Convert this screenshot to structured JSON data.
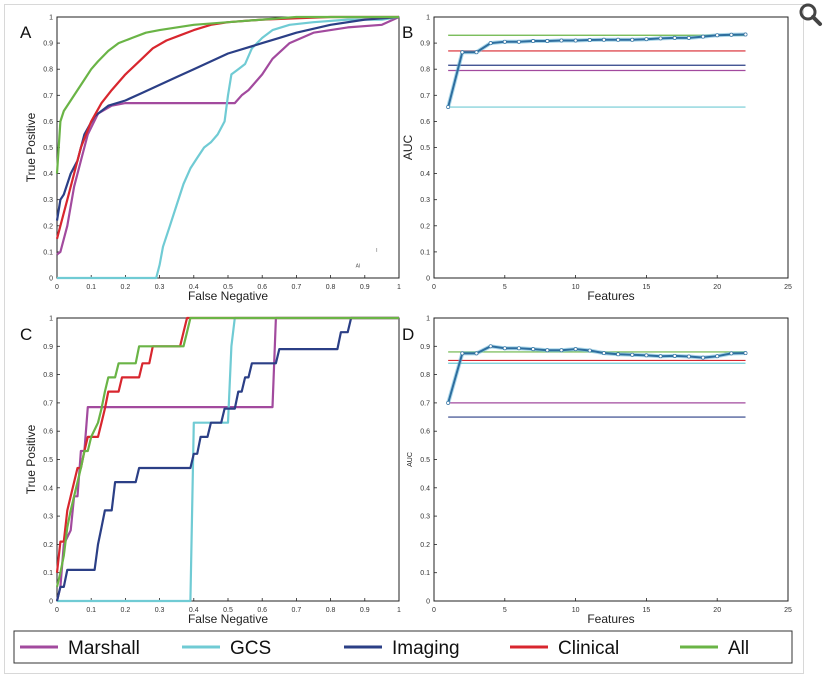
{
  "zoom_icon": "magnifier-zoom-icon",
  "colors": {
    "Marshall": "#a24a9e",
    "GCS": "#70cbd4",
    "Imaging": "#2b3f86",
    "Clinical": "#d8262e",
    "All": "#6ab446"
  },
  "legend": [
    "Marshall",
    "GCS",
    "Imaging",
    "Clinical",
    "All"
  ],
  "chart_data": [
    {
      "panel": "A",
      "type": "line",
      "xlabel": "False Negative",
      "ylabel": "True Positive",
      "xlim": [
        0,
        1
      ],
      "ylim": [
        0,
        1
      ],
      "xticks": [
        "0",
        "0.1",
        "0.2",
        "0.3",
        "0.4",
        "0.5",
        "0.6",
        "0.7",
        "0.8",
        "0.9",
        "1"
      ],
      "yticks": [
        "0",
        "0.1",
        "0.2",
        "0.3",
        "0.4",
        "0.5",
        "0.6",
        "0.7",
        "0.8",
        "0.9",
        "1"
      ],
      "annotations": [
        "AI"
      ],
      "series": [
        {
          "name": "Marshall",
          "x": [
            0,
            0.01,
            0.03,
            0.05,
            0.07,
            0.09,
            0.12,
            0.16,
            0.2,
            0.25,
            0.35,
            0.45,
            0.52,
            0.54,
            0.56,
            0.6,
            0.63,
            0.68,
            0.75,
            0.85,
            0.95,
            1
          ],
          "y": [
            0.09,
            0.1,
            0.2,
            0.35,
            0.45,
            0.55,
            0.63,
            0.66,
            0.67,
            0.67,
            0.67,
            0.67,
            0.67,
            0.7,
            0.72,
            0.78,
            0.84,
            0.9,
            0.94,
            0.96,
            0.97,
            1
          ]
        },
        {
          "name": "GCS",
          "x": [
            0,
            0.29,
            0.3,
            0.31,
            0.33,
            0.35,
            0.37,
            0.39,
            0.41,
            0.43,
            0.45,
            0.47,
            0.49,
            0.5,
            0.51,
            0.53,
            0.55,
            0.57,
            0.6,
            0.63,
            0.68,
            0.75,
            0.85,
            0.95,
            1
          ],
          "y": [
            0,
            0,
            0.05,
            0.12,
            0.2,
            0.28,
            0.36,
            0.42,
            0.46,
            0.5,
            0.52,
            0.55,
            0.6,
            0.7,
            0.78,
            0.8,
            0.82,
            0.88,
            0.92,
            0.95,
            0.97,
            0.98,
            0.99,
            0.99,
            1
          ]
        },
        {
          "name": "Imaging",
          "x": [
            0,
            0.01,
            0.02,
            0.04,
            0.06,
            0.08,
            0.11,
            0.15,
            0.2,
            0.25,
            0.3,
            0.35,
            0.4,
            0.45,
            0.5,
            0.55,
            0.6,
            0.65,
            0.7,
            0.8,
            0.9,
            1
          ],
          "y": [
            0.22,
            0.3,
            0.32,
            0.4,
            0.45,
            0.55,
            0.62,
            0.66,
            0.68,
            0.71,
            0.74,
            0.77,
            0.8,
            0.83,
            0.86,
            0.88,
            0.9,
            0.92,
            0.94,
            0.97,
            0.99,
            1
          ]
        },
        {
          "name": "Clinical",
          "x": [
            0,
            0.01,
            0.03,
            0.05,
            0.07,
            0.1,
            0.13,
            0.16,
            0.2,
            0.24,
            0.28,
            0.32,
            0.36,
            0.4,
            0.45,
            0.5,
            0.6,
            0.7,
            0.8,
            0.9,
            1
          ],
          "y": [
            0.15,
            0.2,
            0.3,
            0.4,
            0.5,
            0.6,
            0.67,
            0.72,
            0.78,
            0.83,
            0.88,
            0.91,
            0.93,
            0.95,
            0.97,
            0.98,
            0.99,
            0.995,
            1,
            1,
            1
          ]
        },
        {
          "name": "All",
          "x": [
            0,
            0.005,
            0.01,
            0.02,
            0.04,
            0.06,
            0.08,
            0.1,
            0.12,
            0.15,
            0.18,
            0.22,
            0.26,
            0.3,
            0.35,
            0.4,
            0.5,
            0.6,
            0.7,
            0.8,
            1
          ],
          "y": [
            0.4,
            0.5,
            0.6,
            0.64,
            0.68,
            0.72,
            0.76,
            0.8,
            0.83,
            0.87,
            0.9,
            0.92,
            0.94,
            0.95,
            0.96,
            0.97,
            0.98,
            0.99,
            1,
            1,
            1
          ]
        }
      ]
    },
    {
      "panel": "B",
      "type": "line",
      "xlabel": "Features",
      "ylabel": "AUC",
      "xlim": [
        0,
        25
      ],
      "ylim": [
        0,
        1
      ],
      "xticks": [
        "0",
        "5",
        "10",
        "15",
        "20",
        "25"
      ],
      "yticks": [
        "0",
        "0.1",
        "0.2",
        "0.3",
        "0.4",
        "0.5",
        "0.6",
        "0.7",
        "0.8",
        "0.9",
        "1"
      ],
      "reference_lines": [
        {
          "name": "All",
          "y": 0.93
        },
        {
          "name": "Clinical",
          "y": 0.87
        },
        {
          "name": "Imaging",
          "y": 0.815
        },
        {
          "name": "Marshall",
          "y": 0.795
        },
        {
          "name": "GCS",
          "y": 0.655
        }
      ],
      "series": [
        {
          "name": "feature-selection",
          "x": [
            1,
            2,
            3,
            4,
            5,
            6,
            7,
            8,
            9,
            10,
            11,
            12,
            13,
            14,
            15,
            16,
            17,
            18,
            19,
            20,
            21,
            22
          ],
          "y": [
            0.655,
            0.865,
            0.865,
            0.9,
            0.905,
            0.905,
            0.908,
            0.908,
            0.91,
            0.91,
            0.912,
            0.913,
            0.913,
            0.913,
            0.915,
            0.918,
            0.92,
            0.92,
            0.925,
            0.93,
            0.932,
            0.933
          ]
        }
      ]
    },
    {
      "panel": "C",
      "type": "line",
      "xlabel": "False Negative",
      "ylabel": "True Positive",
      "xlim": [
        0,
        1
      ],
      "ylim": [
        0,
        1
      ],
      "xticks": [
        "0",
        "0.1",
        "0.2",
        "0.3",
        "0.4",
        "0.5",
        "0.6",
        "0.7",
        "0.8",
        "0.9",
        "1"
      ],
      "yticks": [
        "0",
        "0.1",
        "0.2",
        "0.3",
        "0.4",
        "0.5",
        "0.6",
        "0.7",
        "0.8",
        "0.9",
        "1"
      ],
      "series": [
        {
          "name": "Marshall",
          "x": [
            0,
            0.01,
            0.02,
            0.04,
            0.05,
            0.06,
            0.07,
            0.08,
            0.09,
            0.63,
            0.64,
            1
          ],
          "y": [
            0,
            0.05,
            0.2,
            0.25,
            0.37,
            0.37,
            0.53,
            0.53,
            0.685,
            0.685,
            1,
            1
          ]
        },
        {
          "name": "GCS",
          "x": [
            0,
            0.39,
            0.4,
            0.5,
            0.51,
            0.52,
            0.53,
            1
          ],
          "y": [
            0,
            0,
            0.63,
            0.63,
            0.9,
            1,
            1,
            1
          ]
        },
        {
          "name": "Imaging",
          "x": [
            0,
            0.01,
            0.02,
            0.03,
            0.04,
            0.11,
            0.12,
            0.13,
            0.14,
            0.16,
            0.17,
            0.2,
            0.21,
            0.23,
            0.24,
            0.28,
            0.29,
            0.39,
            0.4,
            0.41,
            0.42,
            0.44,
            0.45,
            0.48,
            0.49,
            0.5,
            0.51,
            0.52,
            0.53,
            0.54,
            0.55,
            0.56,
            0.57,
            0.6,
            0.61,
            0.64,
            0.65,
            0.78,
            0.79,
            0.82,
            0.83,
            0.85,
            0.86,
            1
          ],
          "y": [
            0,
            0.05,
            0.05,
            0.11,
            0.11,
            0.11,
            0.2,
            0.26,
            0.32,
            0.32,
            0.42,
            0.42,
            0.42,
            0.42,
            0.47,
            0.47,
            0.47,
            0.47,
            0.52,
            0.52,
            0.58,
            0.58,
            0.63,
            0.63,
            0.68,
            0.68,
            0.68,
            0.68,
            0.74,
            0.74,
            0.79,
            0.79,
            0.84,
            0.84,
            0.84,
            0.84,
            0.89,
            0.89,
            0.89,
            0.89,
            0.95,
            0.95,
            1,
            1
          ]
        },
        {
          "name": "Clinical",
          "x": [
            0,
            0.01,
            0.02,
            0.03,
            0.04,
            0.05,
            0.06,
            0.07,
            0.08,
            0.09,
            0.1,
            0.12,
            0.13,
            0.14,
            0.15,
            0.18,
            0.19,
            0.2,
            0.21,
            0.24,
            0.25,
            0.27,
            0.28,
            0.36,
            0.37,
            0.38,
            0.39,
            1
          ],
          "y": [
            0.1,
            0.21,
            0.21,
            0.32,
            0.37,
            0.42,
            0.47,
            0.47,
            0.53,
            0.58,
            0.58,
            0.58,
            0.63,
            0.68,
            0.74,
            0.74,
            0.79,
            0.79,
            0.79,
            0.79,
            0.84,
            0.84,
            0.9,
            0.9,
            0.95,
            1,
            1,
            1
          ]
        },
        {
          "name": "All",
          "x": [
            0,
            0.01,
            0.02,
            0.03,
            0.04,
            0.05,
            0.06,
            0.07,
            0.08,
            0.09,
            0.1,
            0.12,
            0.13,
            0.14,
            0.15,
            0.17,
            0.18,
            0.2,
            0.21,
            0.23,
            0.24,
            0.28,
            0.29,
            0.37,
            0.38,
            0.39,
            0.4,
            1
          ],
          "y": [
            0.05,
            0.1,
            0.16,
            0.26,
            0.32,
            0.37,
            0.42,
            0.47,
            0.53,
            0.53,
            0.58,
            0.63,
            0.68,
            0.74,
            0.79,
            0.79,
            0.84,
            0.84,
            0.84,
            0.84,
            0.9,
            0.9,
            0.9,
            0.9,
            0.95,
            1,
            1,
            1
          ]
        }
      ]
    },
    {
      "panel": "D",
      "type": "line",
      "xlabel": "Features",
      "ylabel": "AUC",
      "xlim": [
        0,
        25
      ],
      "ylim": [
        0,
        1
      ],
      "xticks": [
        "0",
        "5",
        "10",
        "15",
        "20",
        "25"
      ],
      "yticks": [
        "0",
        "0.1",
        "0.2",
        "0.3",
        "0.4",
        "0.5",
        "0.6",
        "0.7",
        "0.8",
        "0.9",
        "1"
      ],
      "reference_lines": [
        {
          "name": "All",
          "y": 0.88
        },
        {
          "name": "Clinical",
          "y": 0.85
        },
        {
          "name": "GCS",
          "y": 0.84
        },
        {
          "name": "Marshall",
          "y": 0.7
        },
        {
          "name": "Imaging",
          "y": 0.65
        }
      ],
      "series": [
        {
          "name": "feature-selection",
          "x": [
            1,
            2,
            3,
            4,
            5,
            6,
            7,
            8,
            9,
            10,
            11,
            12,
            13,
            14,
            15,
            16,
            17,
            18,
            19,
            20,
            21,
            22
          ],
          "y": [
            0.7,
            0.875,
            0.875,
            0.9,
            0.893,
            0.893,
            0.89,
            0.886,
            0.886,
            0.89,
            0.885,
            0.876,
            0.872,
            0.87,
            0.868,
            0.865,
            0.866,
            0.864,
            0.86,
            0.865,
            0.875,
            0.876
          ]
        }
      ]
    }
  ]
}
